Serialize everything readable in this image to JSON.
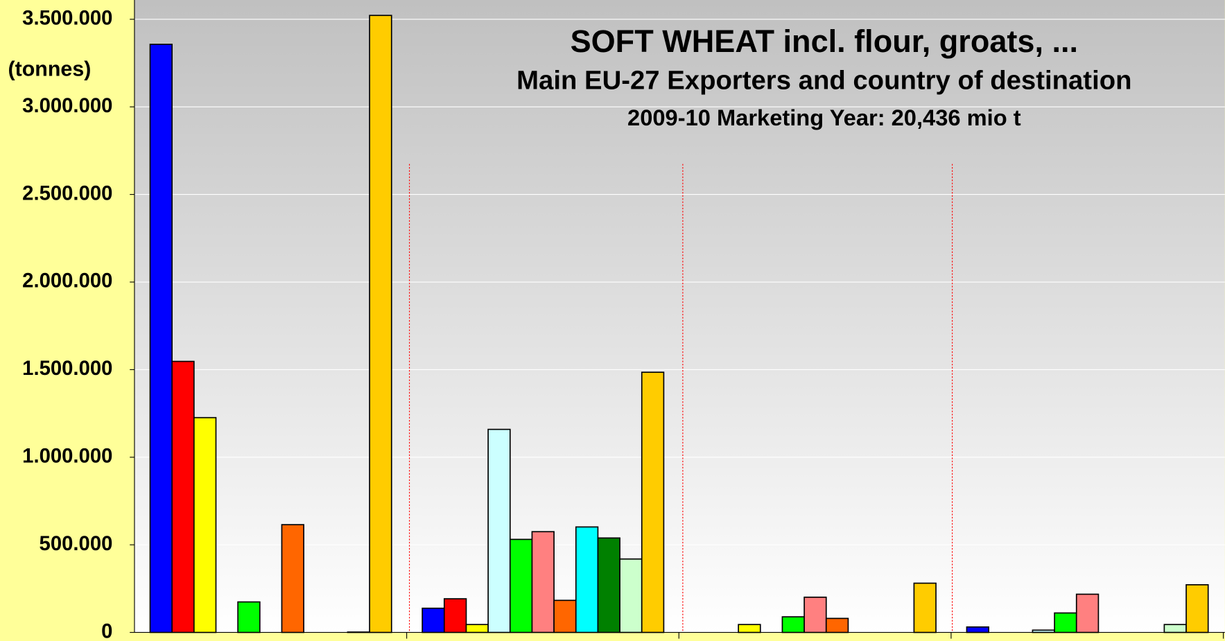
{
  "chart_data": {
    "type": "bar",
    "title": "SOFT WHEAT incl. flour, groats, ...",
    "subtitle": "Main EU-27 Exporters and country of destination",
    "annotation": "2009-10 Marketing Year: 20,436 mio t",
    "y_label": "(tonnes)",
    "categories": [
      null,
      null,
      null,
      null
    ],
    "series": [
      {
        "color": "#0000ff",
        "values": [
          3357000,
          138000,
          0,
          31000
        ]
      },
      {
        "color": "#ff0000",
        "values": [
          1547000,
          192000,
          0,
          0
        ]
      },
      {
        "color": "#ffff00",
        "values": [
          1226000,
          45000,
          45000,
          0
        ]
      },
      {
        "color": "#ccffff",
        "values": [
          0,
          1159000,
          0,
          13000
        ]
      },
      {
        "color": "#00ff00",
        "values": [
          174000,
          531000,
          89000,
          111000
        ]
      },
      {
        "color": "#ff8080",
        "values": [
          0,
          575000,
          201000,
          218000
        ]
      },
      {
        "color": "#ff6600",
        "values": [
          615000,
          183000,
          80000,
          0
        ]
      },
      {
        "color": "#00ffff",
        "values": [
          0,
          602000,
          0,
          0
        ]
      },
      {
        "color": "#008000",
        "values": [
          0,
          539000,
          0,
          0
        ]
      },
      {
        "color": "#ccffcc",
        "values": [
          2000,
          419000,
          0,
          45000
        ]
      },
      {
        "color": "#ffcc00",
        "values": [
          3522000,
          1485000,
          281000,
          272000
        ]
      }
    ],
    "ylim": [
      0,
      3610000
    ],
    "yticks": [
      0,
      {
        "value": 500000,
        "label": "500.000"
      },
      {
        "value": 1000000,
        "label": "1.000.000"
      },
      {
        "value": 1500000,
        "label": "1.500.000"
      },
      {
        "value": 2000000,
        "label": "2.000.000"
      },
      {
        "value": 2500000,
        "label": "2.500.000"
      },
      {
        "value": 3000000,
        "label": "3.000.000"
      },
      {
        "value": 3500000,
        "label": "3.500.000"
      }
    ],
    "grid": true
  }
}
